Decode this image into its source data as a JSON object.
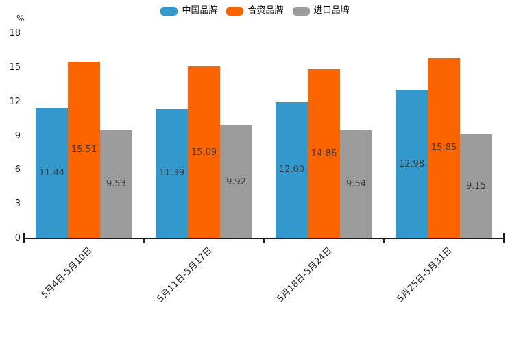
{
  "chart_data": {
    "type": "bar",
    "title": "",
    "unit_label": "%",
    "categories": [
      "5月4日-5月10日",
      "5月11日-5月17日",
      "5月18日-5月24日",
      "5月25日-5月31日"
    ],
    "series": [
      {
        "name": "中国品牌",
        "color": "#3398cc",
        "values": [
          11.44,
          11.39,
          12.0,
          12.98
        ]
      },
      {
        "name": "合资品牌",
        "color": "#fc6400",
        "values": [
          15.51,
          15.09,
          14.86,
          15.85
        ]
      },
      {
        "name": "进口品牌",
        "color": "#9b9b9b",
        "values": [
          9.53,
          9.92,
          9.54,
          9.15
        ]
      }
    ],
    "value_label_format": "2-decimals",
    "value_label_position": "inside-center",
    "y_ticks": [
      0,
      3,
      6,
      9,
      12,
      15,
      18
    ],
    "ylim": [
      0,
      18
    ],
    "grid": false,
    "legend_position": "top-center",
    "x_label_rotation_deg": 45,
    "axis_color": "#1a1a1a"
  }
}
